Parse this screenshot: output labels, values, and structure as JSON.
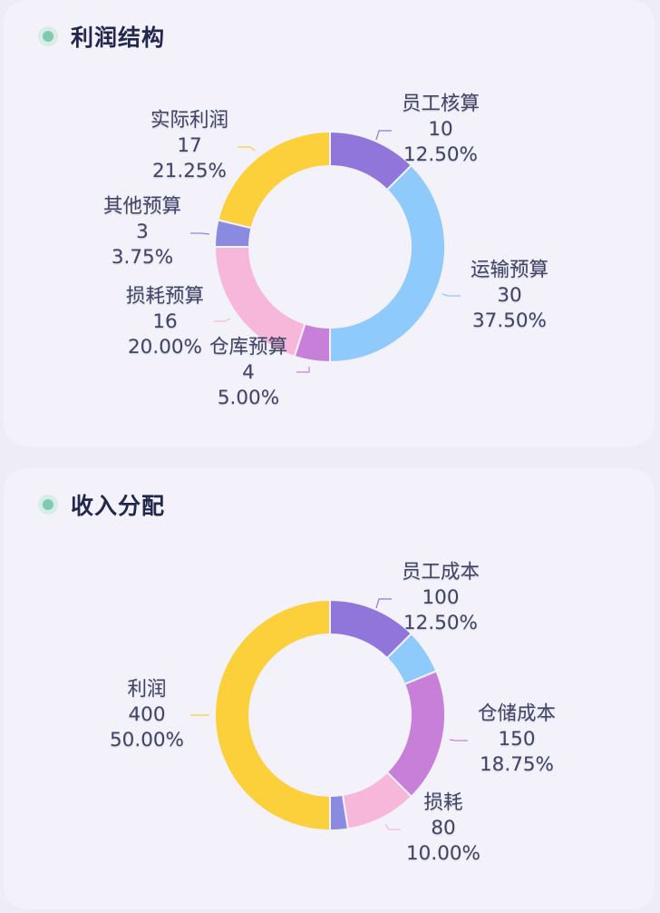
{
  "cards": [
    {
      "title": "利润结构",
      "indicator_color": "#7ecbb2"
    },
    {
      "title": "收入分配",
      "indicator_color": "#7ecbb2"
    }
  ],
  "chart_data": [
    {
      "type": "pie",
      "title": "利润结构",
      "donut": true,
      "categories": [
        "员工核算",
        "运输预算",
        "仓库预算",
        "损耗预算",
        "其他预算",
        "实际利润"
      ],
      "values": [
        10,
        30,
        4,
        16,
        3,
        17
      ],
      "percentages": [
        "12.50%",
        "37.50%",
        "5.00%",
        "20.00%",
        "3.75%",
        "21.25%"
      ],
      "colors": [
        "#9076db",
        "#8ecafb",
        "#c77fd9",
        "#f7b7da",
        "#8a8ae0",
        "#fbd03a"
      ],
      "labels": [
        {
          "name": "员工核算",
          "value": "10",
          "percent": "12.50%"
        },
        {
          "name": "运输预算",
          "value": "30",
          "percent": "37.50%"
        },
        {
          "name": "仓库预算",
          "value": "4",
          "percent": "5.00%"
        },
        {
          "name": "损耗预算",
          "value": "16",
          "percent": "20.00%"
        },
        {
          "name": "其他预算",
          "value": "3",
          "percent": "3.75%"
        },
        {
          "name": "实际利润",
          "value": "17",
          "percent": "21.25%"
        }
      ],
      "legend": "none"
    },
    {
      "type": "pie",
      "title": "收入分配",
      "donut": true,
      "categories": [
        "员工成本",
        "(unlabeled)",
        "仓储成本",
        "损耗",
        "(unlabeled)",
        "利润"
      ],
      "values": [
        100,
        50,
        150,
        80,
        20,
        400
      ],
      "percentages": [
        "12.50%",
        "6.25%",
        "18.75%",
        "10.00%",
        "2.50%",
        "50.00%"
      ],
      "colors": [
        "#9076db",
        "#8ecafb",
        "#c77fd9",
        "#f7b7da",
        "#8a8ae0",
        "#fbd03a"
      ],
      "labels": [
        {
          "name": "员工成本",
          "value": "100",
          "percent": "12.50%"
        },
        {
          "name": "",
          "value": "",
          "percent": ""
        },
        {
          "name": "仓储成本",
          "value": "150",
          "percent": "18.75%"
        },
        {
          "name": "损耗",
          "value": "80",
          "percent": "10.00%"
        },
        {
          "name": "",
          "value": "",
          "percent": ""
        },
        {
          "name": "利润",
          "value": "400",
          "percent": "50.00%"
        }
      ],
      "legend": "none"
    }
  ]
}
